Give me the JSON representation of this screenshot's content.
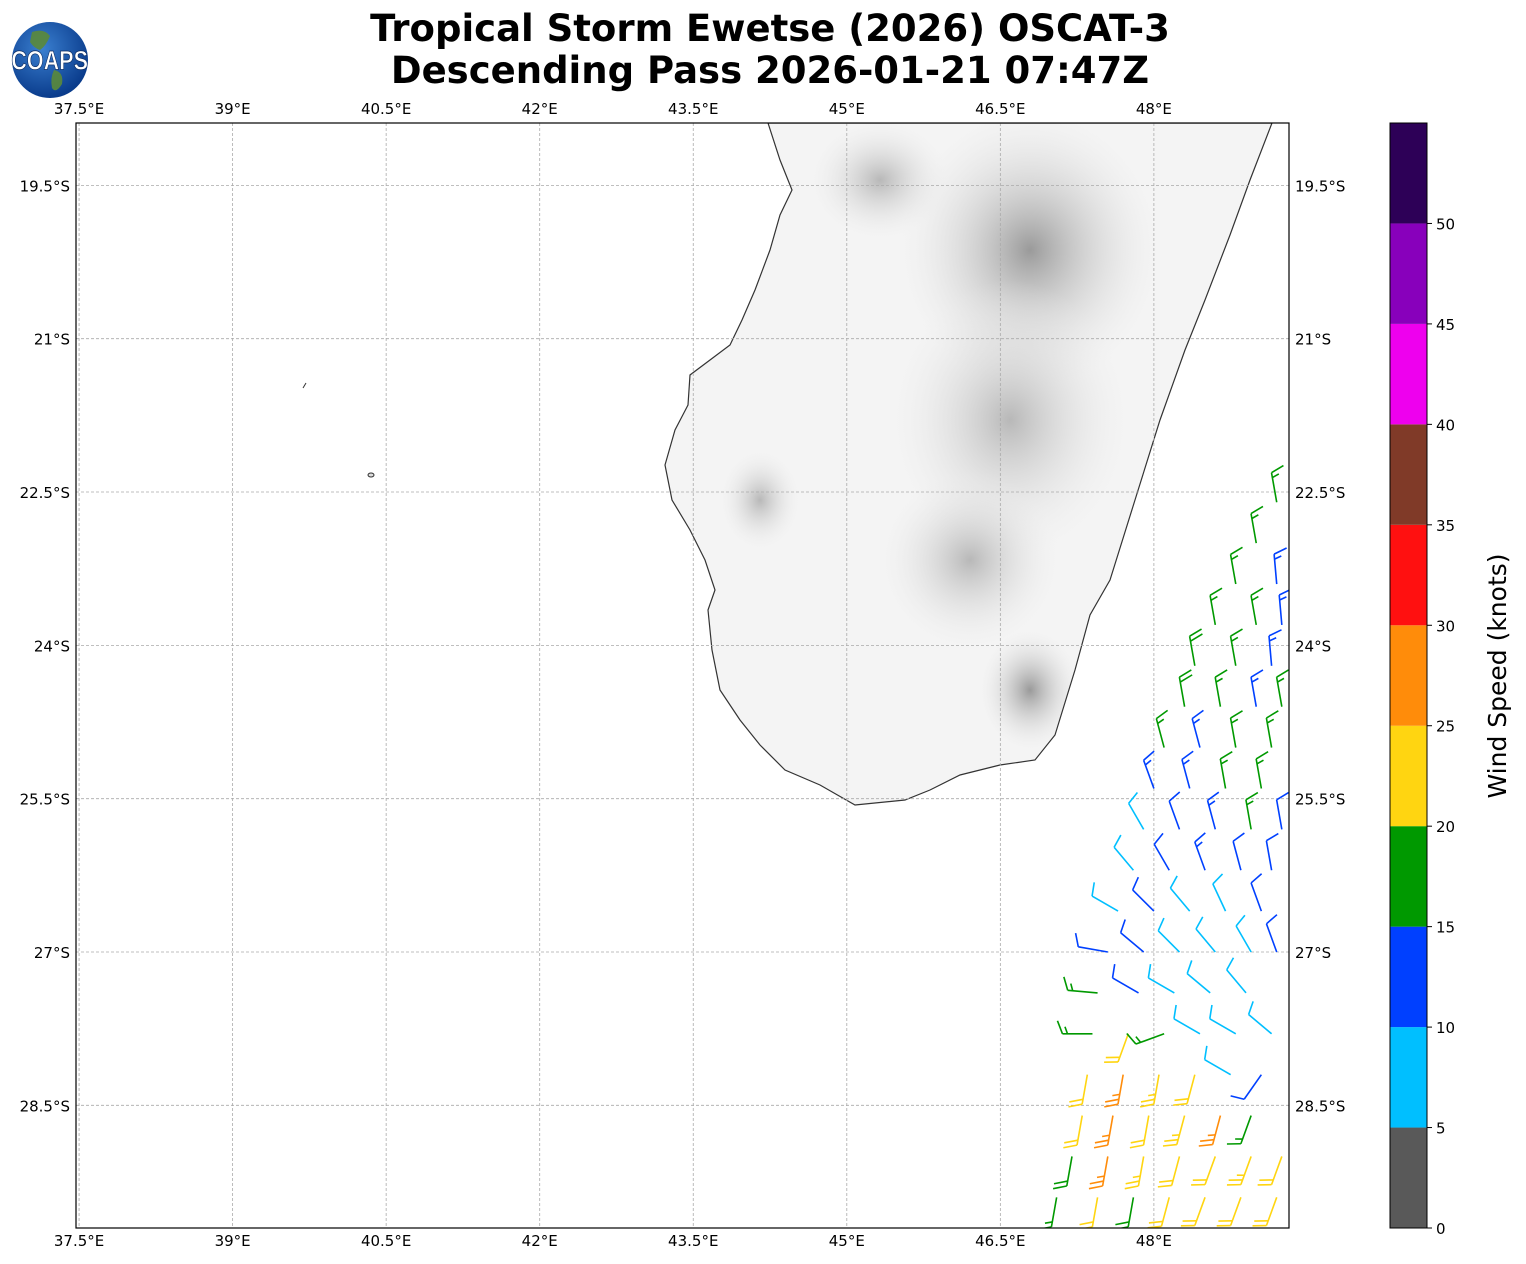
{
  "title": {
    "line1": "Tropical Storm Ewetse (2026) OSCAT-3",
    "line2": "Descending Pass 2026-01-21 07:47Z"
  },
  "logo": {
    "text": "COAPS"
  },
  "map": {
    "lon_ticks": [
      {
        "v": 37.5,
        "label": "37.5°E"
      },
      {
        "v": 39,
        "label": "39°E"
      },
      {
        "v": 40.5,
        "label": "40.5°E"
      },
      {
        "v": 42,
        "label": "42°E"
      },
      {
        "v": 43.5,
        "label": "43.5°E"
      },
      {
        "v": 45,
        "label": "45°E"
      },
      {
        "v": 46.5,
        "label": "46.5°E"
      },
      {
        "v": 48,
        "label": "48°E"
      }
    ],
    "lat_ticks": [
      {
        "v": 19.5,
        "label": "19.5°S"
      },
      {
        "v": 21,
        "label": "21°S"
      },
      {
        "v": 22.5,
        "label": "22.5°S"
      },
      {
        "v": 24,
        "label": "24°S"
      },
      {
        "v": 25.5,
        "label": "25.5°S"
      },
      {
        "v": 27,
        "label": "27°S"
      },
      {
        "v": 28.5,
        "label": "28.5°S"
      }
    ],
    "lon_range": [
      37.47,
      49.32
    ],
    "lat_range_south": [
      18.89,
      29.7
    ],
    "gridlines": true
  },
  "colorbar": {
    "label": "Wind Speed (knots)",
    "ticks": [
      "0",
      "5",
      "10",
      "15",
      "20",
      "25",
      "30",
      "35",
      "40",
      "45",
      "50"
    ],
    "bins": [
      {
        "min": 0,
        "max": 5,
        "color": "#595959"
      },
      {
        "min": 5,
        "max": 10,
        "color": "#00bfff"
      },
      {
        "min": 10,
        "max": 15,
        "color": "#0040ff"
      },
      {
        "min": 15,
        "max": 20,
        "color": "#009900"
      },
      {
        "min": 20,
        "max": 25,
        "color": "#ffd511"
      },
      {
        "min": 25,
        "max": 30,
        "color": "#ff8c0a"
      },
      {
        "min": 30,
        "max": 35,
        "color": "#ff1010"
      },
      {
        "min": 35,
        "max": 40,
        "color": "#803a28"
      },
      {
        "min": 40,
        "max": 45,
        "color": "#ee00ee"
      },
      {
        "min": 45,
        "max": 50,
        "color": "#8800bb"
      },
      {
        "min": 50,
        "max": 55,
        "color": "#2d0057"
      }
    ]
  },
  "chart_data": {
    "type": "wind-barbs",
    "units": "knots",
    "barbs_fields": [
      "lon_E",
      "lat_S",
      "speed_kt",
      "dir_from_deg"
    ],
    "barbs": [
      [
        49.2,
        22.6,
        16,
        350
      ],
      [
        49.0,
        23.0,
        17,
        350
      ],
      [
        48.8,
        23.4,
        17,
        350
      ],
      [
        49.2,
        23.4,
        14,
        355
      ],
      [
        48.6,
        23.8,
        17,
        350
      ],
      [
        49.0,
        23.8,
        16,
        350
      ],
      [
        49.25,
        23.8,
        13,
        355
      ],
      [
        48.4,
        24.2,
        18,
        350
      ],
      [
        48.8,
        24.2,
        17,
        350
      ],
      [
        49.15,
        24.2,
        13,
        355
      ],
      [
        48.3,
        24.6,
        18,
        350
      ],
      [
        48.65,
        24.6,
        17,
        350
      ],
      [
        49.0,
        24.6,
        14,
        350
      ],
      [
        49.25,
        24.6,
        16,
        350
      ],
      [
        48.1,
        25.0,
        17,
        345
      ],
      [
        48.45,
        25.0,
        14,
        345
      ],
      [
        48.8,
        25.0,
        16,
        350
      ],
      [
        49.15,
        25.0,
        17,
        350
      ],
      [
        48.0,
        25.4,
        13,
        340
      ],
      [
        48.35,
        25.4,
        14,
        345
      ],
      [
        48.7,
        25.4,
        16,
        350
      ],
      [
        49.05,
        25.4,
        17,
        350
      ],
      [
        47.9,
        25.8,
        8,
        330
      ],
      [
        48.25,
        25.8,
        12,
        340
      ],
      [
        48.6,
        25.8,
        14,
        345
      ],
      [
        48.95,
        25.8,
        16,
        350
      ],
      [
        49.25,
        25.8,
        12,
        350
      ],
      [
        47.8,
        26.2,
        8,
        320
      ],
      [
        48.15,
        26.2,
        12,
        330
      ],
      [
        48.5,
        26.2,
        13,
        340
      ],
      [
        48.85,
        26.2,
        12,
        345
      ],
      [
        49.15,
        26.2,
        12,
        350
      ],
      [
        47.65,
        26.6,
        8,
        300
      ],
      [
        48.0,
        26.6,
        11,
        315
      ],
      [
        48.35,
        26.6,
        9,
        320
      ],
      [
        48.7,
        26.6,
        9,
        335
      ],
      [
        49.05,
        26.6,
        11,
        340
      ],
      [
        47.55,
        27.0,
        11,
        280
      ],
      [
        47.9,
        27.0,
        11,
        310
      ],
      [
        48.25,
        27.0,
        9,
        315
      ],
      [
        48.6,
        27.0,
        8,
        320
      ],
      [
        48.95,
        27.0,
        8,
        330
      ],
      [
        49.2,
        27.0,
        11,
        340
      ],
      [
        47.45,
        27.4,
        16,
        275
      ],
      [
        47.85,
        27.4,
        12,
        300
      ],
      [
        48.2,
        27.4,
        9,
        300
      ],
      [
        48.55,
        27.4,
        9,
        310
      ],
      [
        48.9,
        27.4,
        8,
        320
      ],
      [
        47.4,
        27.8,
        16,
        270
      ],
      [
        47.75,
        27.8,
        22,
        200
      ],
      [
        48.1,
        27.8,
        16,
        250
      ],
      [
        48.45,
        27.8,
        8,
        300
      ],
      [
        48.8,
        27.8,
        8,
        300
      ],
      [
        49.15,
        27.8,
        9,
        310
      ],
      [
        47.35,
        28.2,
        22,
        190
      ],
      [
        47.7,
        28.2,
        27,
        190
      ],
      [
        48.05,
        28.2,
        23,
        190
      ],
      [
        48.4,
        28.2,
        22,
        195
      ],
      [
        48.75,
        28.2,
        9,
        300
      ],
      [
        49.05,
        28.2,
        12,
        215
      ],
      [
        47.3,
        28.6,
        21,
        190
      ],
      [
        47.6,
        28.6,
        26,
        190
      ],
      [
        47.95,
        28.6,
        22,
        190
      ],
      [
        48.3,
        28.6,
        23,
        195
      ],
      [
        48.65,
        28.6,
        26,
        195
      ],
      [
        48.95,
        28.6,
        17,
        200
      ],
      [
        47.2,
        29.0,
        18,
        190
      ],
      [
        47.55,
        29.0,
        26,
        190
      ],
      [
        47.9,
        29.0,
        23,
        190
      ],
      [
        48.25,
        29.0,
        22,
        195
      ],
      [
        48.6,
        29.0,
        22,
        200
      ],
      [
        48.95,
        29.0,
        23,
        200
      ],
      [
        49.25,
        29.0,
        22,
        200
      ],
      [
        47.05,
        29.4,
        17,
        190
      ],
      [
        47.45,
        29.4,
        21,
        190
      ],
      [
        47.8,
        29.4,
        18,
        190
      ],
      [
        48.15,
        29.4,
        22,
        195
      ],
      [
        48.5,
        29.4,
        22,
        200
      ],
      [
        48.85,
        29.4,
        22,
        200
      ],
      [
        49.2,
        29.4,
        21,
        200
      ],
      [
        46.95,
        29.7,
        26,
        190
      ],
      [
        47.35,
        29.7,
        22,
        190
      ],
      [
        47.7,
        29.7,
        18,
        190
      ],
      [
        48.05,
        29.7,
        21,
        195
      ],
      [
        48.4,
        29.7,
        18,
        200
      ],
      [
        48.75,
        29.7,
        17,
        200
      ],
      [
        49.15,
        29.7,
        17,
        205
      ]
    ]
  }
}
